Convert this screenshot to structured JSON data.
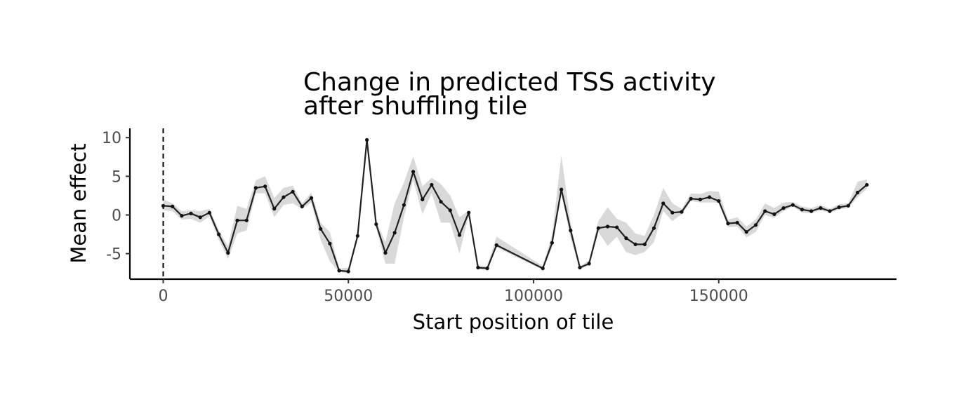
{
  "chart_data": {
    "type": "line",
    "title_lines": [
      "Change in predicted TSS activity",
      "after shuffling tile"
    ],
    "xlabel": "Start position of tile",
    "ylabel": "Mean effect",
    "xlim": [
      -9000,
      198000
    ],
    "ylim": [
      -8.3,
      11.2
    ],
    "x_ticks": [
      0,
      50000,
      100000,
      150000
    ],
    "x_tick_labels": [
      "0",
      "50000",
      "100000",
      "150000"
    ],
    "y_ticks": [
      -5,
      0,
      5,
      10
    ],
    "y_tick_labels": [
      "-5",
      "0",
      "5",
      "10"
    ],
    "reference_line_x": 0,
    "grid": false,
    "legend": "none",
    "colors": {
      "line": "#222222",
      "ribbon": "#d9d9d9",
      "reference": "#000000"
    },
    "series": [
      {
        "x": [
          0,
          2500,
          5000,
          7500,
          10000,
          12500,
          15000,
          17500,
          20000,
          22500,
          25000,
          27500,
          30000,
          32500,
          35000,
          37500,
          40000,
          42500,
          45000,
          47500,
          50000,
          52500,
          55000,
          57500,
          60000,
          62500,
          65000,
          67500,
          70000,
          72500,
          75000,
          77500,
          80000,
          82500,
          85000,
          87500,
          90000,
          102500,
          105000,
          107500,
          110000,
          112500,
          115000,
          117500,
          120000,
          122500,
          125000,
          127500,
          130000,
          132500,
          135000,
          137500,
          140000,
          142500,
          145000,
          147500,
          150000,
          152500,
          155000,
          157500,
          160000,
          162500,
          165000,
          167500,
          170000,
          172500,
          175000,
          177500,
          180000,
          182500,
          185000,
          187500,
          190000
        ],
        "y": [
          1.2,
          1.1,
          -0.1,
          0.2,
          -0.3,
          0.3,
          -2.5,
          -4.9,
          -0.7,
          -0.7,
          3.5,
          3.7,
          0.8,
          2.3,
          3.0,
          1.1,
          2.2,
          -1.8,
          -3.7,
          -7.2,
          -7.3,
          -2.7,
          9.7,
          -1.2,
          -4.9,
          -2.3,
          1.3,
          5.6,
          2.0,
          3.9,
          1.7,
          0.6,
          -2.6,
          0.3,
          -6.8,
          -6.9,
          -3.9,
          -6.9,
          -3.6,
          3.3,
          -2.0,
          -6.8,
          -6.3,
          -1.7,
          -1.5,
          -1.6,
          -3.0,
          -3.8,
          -3.8,
          -1.7,
          1.5,
          0.3,
          0.4,
          2.1,
          2.0,
          2.3,
          1.8,
          -1.1,
          -1.0,
          -2.2,
          -1.3,
          0.5,
          0.1,
          0.9,
          1.3,
          0.7,
          0.5,
          0.9,
          0.5,
          1.0,
          1.2,
          2.9,
          3.9
        ],
        "lower": [
          0.6,
          0.5,
          -0.6,
          -0.5,
          -1.0,
          -0.2,
          -3.2,
          -5.7,
          -2.4,
          -2.0,
          2.8,
          2.8,
          -0.3,
          1.3,
          1.5,
          0.8,
          1.6,
          -3.2,
          -6.0,
          -7.4,
          -7.5,
          -3.2,
          9.4,
          -1.6,
          -6.3,
          -6.3,
          -0.3,
          4.5,
          0.1,
          2.8,
          -1.0,
          -1.0,
          -5.0,
          0.0,
          -7.0,
          -7.1,
          -4.2,
          -7.1,
          -4.2,
          2.8,
          -3.0,
          -7.0,
          -6.5,
          -2.2,
          -4.0,
          -2.8,
          -4.8,
          -5.2,
          -4.8,
          -3.5,
          0.5,
          -0.8,
          0.1,
          1.8,
          1.6,
          1.6,
          1.6,
          -1.6,
          -1.5,
          -2.9,
          -2.2,
          0.0,
          -0.4,
          0.5,
          1.1,
          0.3,
          0.2,
          0.6,
          0.3,
          0.7,
          0.9,
          2.3,
          3.4
        ],
        "upper": [
          2.0,
          1.5,
          0.5,
          0.6,
          0.5,
          0.8,
          -2.0,
          -4.0,
          1.2,
          0.8,
          4.5,
          5.0,
          2.2,
          3.5,
          3.8,
          1.5,
          2.9,
          -1.0,
          -2.2,
          -6.9,
          -6.8,
          -2.2,
          10.1,
          -0.8,
          -3.5,
          1.5,
          4.2,
          7.6,
          3.7,
          4.8,
          4.0,
          2.5,
          -0.3,
          0.6,
          -6.6,
          -6.6,
          -2.8,
          -6.6,
          -2.5,
          7.7,
          -1.0,
          -6.6,
          -5.9,
          -0.8,
          1.0,
          -0.5,
          -1.0,
          -2.4,
          -2.7,
          0.0,
          3.5,
          1.5,
          0.8,
          2.8,
          2.7,
          3.1,
          3.0,
          -0.6,
          -0.3,
          -1.5,
          -0.6,
          1.5,
          0.9,
          1.6,
          1.7,
          1.1,
          0.9,
          1.3,
          0.8,
          1.4,
          1.5,
          4.3,
          4.6
        ]
      }
    ]
  }
}
